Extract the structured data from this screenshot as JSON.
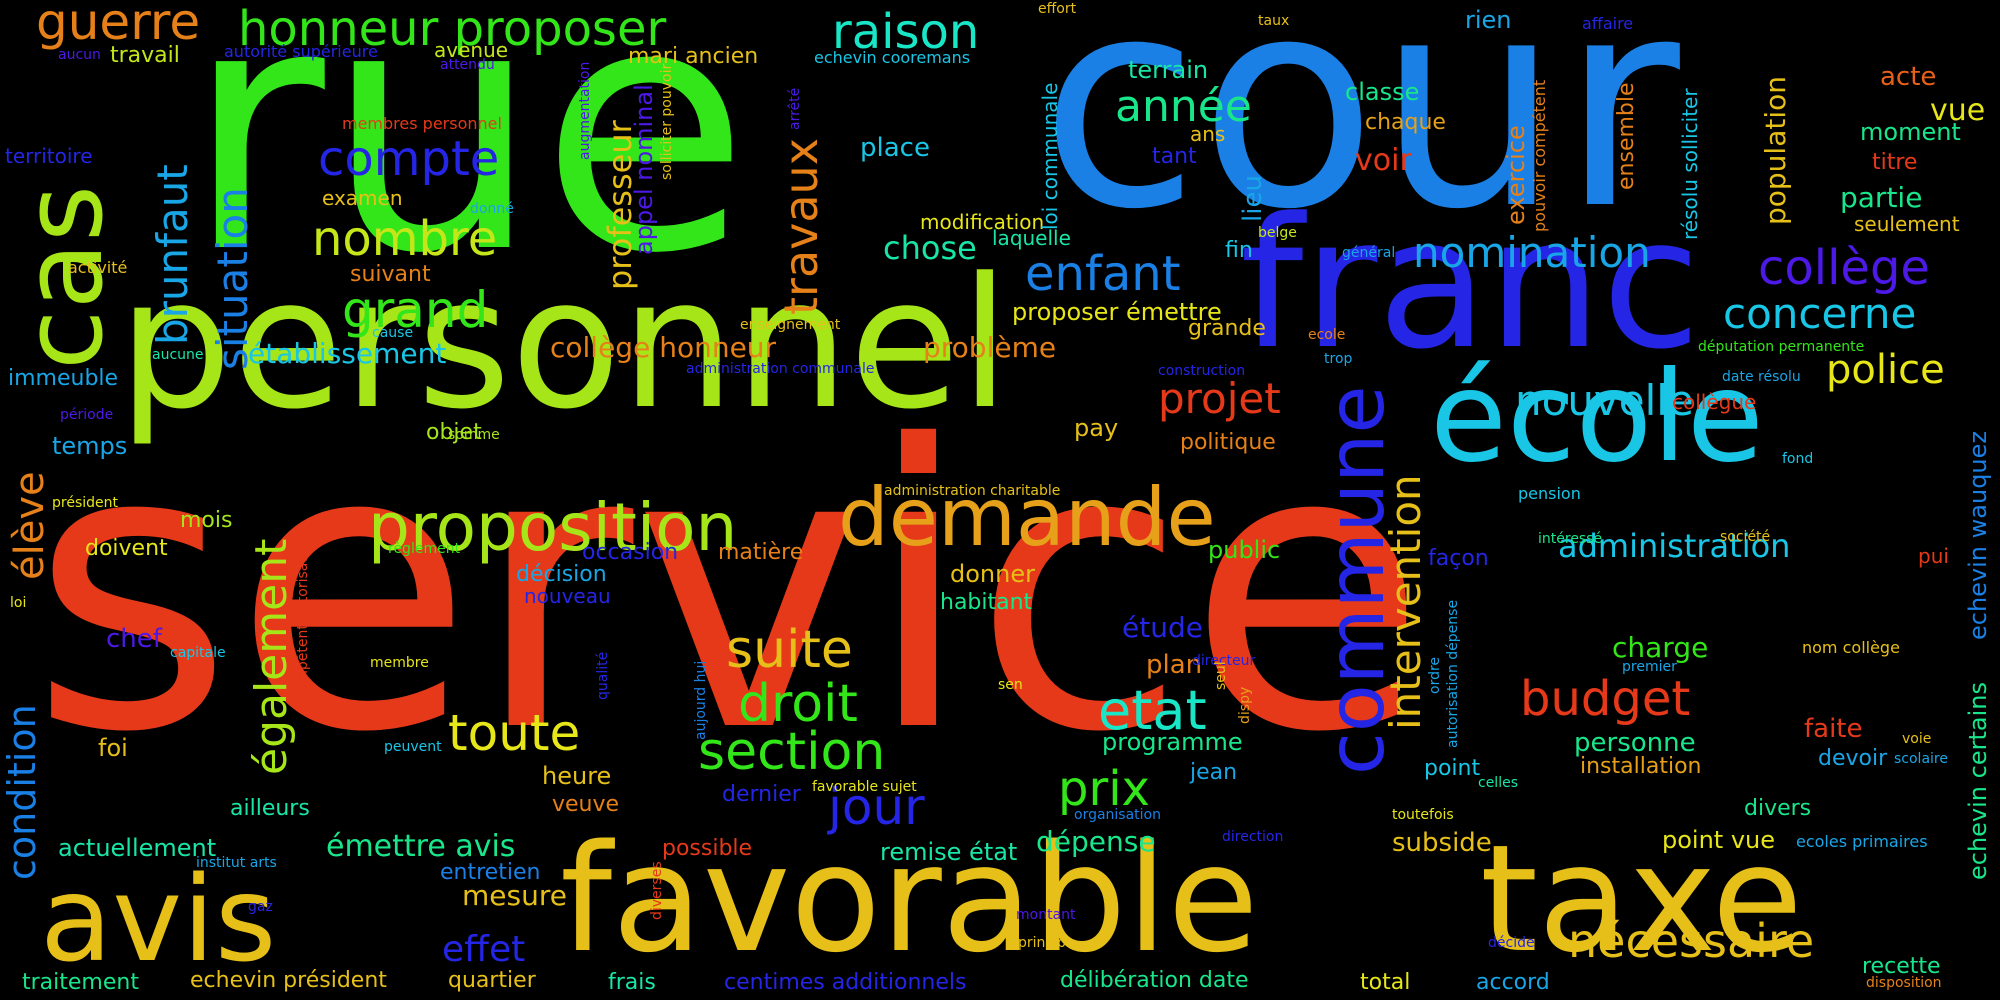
{
  "palette": {
    "green": "#33e619",
    "lime": "#a6e619",
    "yellow": "#e6c019",
    "orange": "#e68019",
    "red": "#e63919",
    "blue": "#1a80e6",
    "indigo": "#2525e6",
    "cyan": "#19c6e6",
    "teal": "#19e6a6",
    "mint": "#19e68a",
    "purple": "#4c19e6"
  },
  "words": [
    {
      "text": "service",
      "color": "#e63919"
    },
    {
      "text": "rue",
      "color": "#33e619"
    },
    {
      "text": "cour",
      "color": "#1a80e6"
    },
    {
      "text": "personnel",
      "color": "#a6e619"
    },
    {
      "text": "franc",
      "color": "#2525e6"
    },
    {
      "text": "école",
      "color": "#19c6e6"
    },
    {
      "text": "avis",
      "color": "#e6c019"
    },
    {
      "text": "favorable",
      "color": "#e6c019"
    },
    {
      "text": "taxe",
      "color": "#e6c019"
    },
    {
      "text": "cas",
      "color": "#a6e619"
    },
    {
      "text": "demande",
      "color": "#e6a019"
    },
    {
      "text": "proposition",
      "color": "#a6e619"
    },
    {
      "text": "commune",
      "color": "#2525e6"
    },
    {
      "text": "guerre",
      "color": "#e68019"
    },
    {
      "text": "honneur proposer",
      "color": "#33e619"
    },
    {
      "text": "raison",
      "color": "#19e6c6"
    },
    {
      "text": "compte",
      "color": "#2525e6"
    },
    {
      "text": "nombre",
      "color": "#c6e619"
    },
    {
      "text": "grand",
      "color": "#33e619"
    },
    {
      "text": "situation",
      "color": "#1a80e6"
    },
    {
      "text": "brunfaut",
      "color": "#19a6e6"
    },
    {
      "text": "travaux",
      "color": "#e68019"
    },
    {
      "text": "professeur",
      "color": "#e6c019"
    },
    {
      "text": "appel nominal",
      "color": "#4c19e6"
    },
    {
      "text": "année",
      "color": "#19e68a"
    },
    {
      "text": "enfant",
      "color": "#1a80e6"
    },
    {
      "text": "nomination",
      "color": "#19a6e6"
    },
    {
      "text": "concerne",
      "color": "#19c6e6"
    },
    {
      "text": "collège",
      "color": "#4c19e6"
    },
    {
      "text": "police",
      "color": "#e6e619"
    },
    {
      "text": "nouvelle",
      "color": "#19c6e6"
    },
    {
      "text": "projet",
      "color": "#e63919"
    },
    {
      "text": "intervention",
      "color": "#e6c019"
    },
    {
      "text": "administration",
      "color": "#19c6e6"
    },
    {
      "text": "budget",
      "color": "#e63919"
    },
    {
      "text": "également",
      "color": "#a6e619"
    },
    {
      "text": "élève",
      "color": "#e68019"
    },
    {
      "text": "condition",
      "color": "#1a80e6"
    },
    {
      "text": "suite",
      "color": "#e6c019"
    },
    {
      "text": "droit",
      "color": "#33e619"
    },
    {
      "text": "section",
      "color": "#33e619"
    },
    {
      "text": "toute",
      "color": "#e6e619"
    },
    {
      "text": "jour",
      "color": "#2525e6"
    },
    {
      "text": "etat",
      "color": "#19e6c6"
    },
    {
      "text": "prix",
      "color": "#33e619"
    },
    {
      "text": "nécessaire",
      "color": "#e6c019"
    },
    {
      "text": "établissement",
      "color": "#19c6e6"
    },
    {
      "text": "collège honneur",
      "color": "#e68019"
    },
    {
      "text": "problème",
      "color": "#e68019"
    },
    {
      "text": "chose",
      "color": "#19e6a6"
    },
    {
      "text": "place",
      "color": "#19c6e6"
    },
    {
      "text": "mari ancien",
      "color": "#e6c019"
    },
    {
      "text": "travail",
      "color": "#c6e619"
    },
    {
      "text": "avenue",
      "color": "#c6e619"
    },
    {
      "text": "terrain",
      "color": "#19e6a6"
    },
    {
      "text": "classe",
      "color": "#19e68a"
    },
    {
      "text": "chaque",
      "color": "#e6a019"
    },
    {
      "text": "voir",
      "color": "#e63919"
    },
    {
      "text": "rien",
      "color": "#19a6e6"
    },
    {
      "text": "acte",
      "color": "#e66019"
    },
    {
      "text": "vue",
      "color": "#e6e619"
    },
    {
      "text": "moment",
      "color": "#19e68a"
    },
    {
      "text": "titre",
      "color": "#e63919"
    },
    {
      "text": "partie",
      "color": "#19e68a"
    },
    {
      "text": "seulement",
      "color": "#e6c019"
    },
    {
      "text": "population",
      "color": "#e6c019"
    },
    {
      "text": "exercice",
      "color": "#e68019"
    },
    {
      "text": "ensemble",
      "color": "#e68019"
    },
    {
      "text": "lieu",
      "color": "#19a6e6"
    },
    {
      "text": "modification",
      "color": "#e6e619"
    },
    {
      "text": "laquelle",
      "color": "#19e6a6"
    },
    {
      "text": "fin",
      "color": "#19c6e6"
    },
    {
      "text": "proposer émettre",
      "color": "#e6e619"
    },
    {
      "text": "grande",
      "color": "#e6c019"
    },
    {
      "text": "pay",
      "color": "#e6c019"
    },
    {
      "text": "politique",
      "color": "#e68019"
    },
    {
      "text": "objet",
      "color": "#a6e619"
    },
    {
      "text": "temps",
      "color": "#19a6e6"
    },
    {
      "text": "immeuble",
      "color": "#19a6e6"
    },
    {
      "text": "territoire",
      "color": "#2525e6"
    },
    {
      "text": "examen",
      "color": "#e6c019"
    },
    {
      "text": "suivant",
      "color": "#e68019"
    },
    {
      "text": "mois",
      "color": "#a6e619"
    },
    {
      "text": "doivent",
      "color": "#e6e619"
    },
    {
      "text": "occasion",
      "color": "#2525e6"
    },
    {
      "text": "matière",
      "color": "#e68019"
    },
    {
      "text": "décision",
      "color": "#19a6e6"
    },
    {
      "text": "nouveau",
      "color": "#2525e6"
    },
    {
      "text": "donner",
      "color": "#e6c019"
    },
    {
      "text": "habitant",
      "color": "#19e68a"
    },
    {
      "text": "public",
      "color": "#33e619"
    },
    {
      "text": "façon",
      "color": "#2525e6"
    },
    {
      "text": "étude",
      "color": "#2525e6"
    },
    {
      "text": "plan",
      "color": "#e68019"
    },
    {
      "text": "chef",
      "color": "#4c19e6"
    },
    {
      "text": "foi",
      "color": "#e6c019"
    },
    {
      "text": "heure",
      "color": "#e6c019"
    },
    {
      "text": "veuve",
      "color": "#e68019"
    },
    {
      "text": "ailleurs",
      "color": "#19e6a6"
    },
    {
      "text": "actuellement",
      "color": "#19e6a6"
    },
    {
      "text": "émettre avis",
      "color": "#19e68a"
    },
    {
      "text": "programme",
      "color": "#19e68a"
    },
    {
      "text": "jean",
      "color": "#19a6e6"
    },
    {
      "text": "dernier",
      "color": "#2525e6"
    },
    {
      "text": "remise état",
      "color": "#19e6a6"
    },
    {
      "text": "dépense",
      "color": "#19e68a"
    },
    {
      "text": "possible",
      "color": "#e63919"
    },
    {
      "text": "entretien",
      "color": "#1a80e6"
    },
    {
      "text": "mesure",
      "color": "#e6c019"
    },
    {
      "text": "effet",
      "color": "#2525e6"
    },
    {
      "text": "traitement",
      "color": "#19e68a"
    },
    {
      "text": "echevin président",
      "color": "#e6c019"
    },
    {
      "text": "quartier",
      "color": "#e6c019"
    },
    {
      "text": "frais",
      "color": "#19e6a6"
    },
    {
      "text": "centimes additionnels",
      "color": "#2525e6"
    },
    {
      "text": "délibération date",
      "color": "#19e68a"
    },
    {
      "text": "total",
      "color": "#e6e619"
    },
    {
      "text": "accord",
      "color": "#19a6e6"
    },
    {
      "text": "recette",
      "color": "#19e68a"
    },
    {
      "text": "charge",
      "color": "#33e619"
    },
    {
      "text": "personne",
      "color": "#19e68a"
    },
    {
      "text": "installation",
      "color": "#e6a019"
    },
    {
      "text": "faite",
      "color": "#e63919"
    },
    {
      "text": "devoir",
      "color": "#19a6e6"
    },
    {
      "text": "point",
      "color": "#19c6e6"
    },
    {
      "text": "divers",
      "color": "#19e68a"
    },
    {
      "text": "point vue",
      "color": "#e6e619"
    },
    {
      "text": "subside",
      "color": "#e6c019"
    },
    {
      "text": "echevin wauquez",
      "color": "#1a80e6"
    },
    {
      "text": "echevin certains",
      "color": "#19e68a"
    },
    {
      "text": "pui",
      "color": "#e63919"
    },
    {
      "text": "résolu solliciter",
      "color": "#19c6e6"
    },
    {
      "text": "pouvoir compétent",
      "color": "#e68019"
    },
    {
      "text": "loi communale",
      "color": "#19c6e6"
    },
    {
      "text": "ans",
      "color": "#e6c019"
    },
    {
      "text": "tant",
      "color": "#2525e6"
    },
    {
      "text": "membres personnel",
      "color": "#e63919"
    },
    {
      "text": "autorité supérieure",
      "color": "#2525e6"
    },
    {
      "text": "attendu",
      "color": "#4c19e6"
    },
    {
      "text": "aucun",
      "color": "#4c19e6"
    },
    {
      "text": "echevin cooremans",
      "color": "#19c6e6"
    },
    {
      "text": "effort",
      "color": "#e6c019"
    },
    {
      "text": "taux",
      "color": "#e6c019"
    },
    {
      "text": "affaire",
      "color": "#2525e6"
    },
    {
      "text": "augmentation",
      "color": "#4c19e6"
    },
    {
      "text": "solliciter pouvoir",
      "color": "#e6c019"
    },
    {
      "text": "arrêté",
      "color": "#4c19e6"
    },
    {
      "text": "activité",
      "color": "#e6c019"
    },
    {
      "text": "donné",
      "color": "#19a6e6"
    },
    {
      "text": "aucune",
      "color": "#19e6a6"
    },
    {
      "text": "cause",
      "color": "#19c6e6"
    },
    {
      "text": "enseignement",
      "color": "#e6c019"
    },
    {
      "text": "administration communale",
      "color": "#2525e6"
    },
    {
      "text": "construction",
      "color": "#2525e6"
    },
    {
      "text": "général",
      "color": "#19a6e6"
    },
    {
      "text": "belge",
      "color": "#c6e619"
    },
    {
      "text": "ecole",
      "color": "#e68019"
    },
    {
      "text": "trop",
      "color": "#19a6e6"
    },
    {
      "text": "députation permanente",
      "color": "#33e619"
    },
    {
      "text": "date résolu",
      "color": "#19a6e6"
    },
    {
      "text": "fond",
      "color": "#19c6e6"
    },
    {
      "text": "collègue",
      "color": "#e63919"
    },
    {
      "text": "pension",
      "color": "#19c6e6"
    },
    {
      "text": "période",
      "color": "#4c19e6"
    },
    {
      "text": "somme",
      "color": "#a6e619"
    },
    {
      "text": "président",
      "color": "#e6e619"
    },
    {
      "text": "règlement",
      "color": "#33e619"
    },
    {
      "text": "administration charitable",
      "color": "#e6c019"
    },
    {
      "text": "compétent autorisation",
      "color": "#e63919"
    },
    {
      "text": "loi",
      "color": "#e6e619"
    },
    {
      "text": "capitale",
      "color": "#19c6e6"
    },
    {
      "text": "membre",
      "color": "#e6e619"
    },
    {
      "text": "peuvent",
      "color": "#19c6e6"
    },
    {
      "text": "qualité",
      "color": "#2525e6"
    },
    {
      "text": "aujourd hui",
      "color": "#1a80e6"
    },
    {
      "text": "favorable sujet",
      "color": "#e6e619"
    },
    {
      "text": "intéressé",
      "color": "#19e68a"
    },
    {
      "text": "autorisation dépense",
      "color": "#19a6e6"
    },
    {
      "text": "ordre",
      "color": "#19a6e6"
    },
    {
      "text": "société",
      "color": "#e6c019"
    },
    {
      "text": "nom collège",
      "color": "#e6c019"
    },
    {
      "text": "premier",
      "color": "#19a6e6"
    },
    {
      "text": "directeur",
      "color": "#2525e6"
    },
    {
      "text": "seul",
      "color": "#e6c019"
    },
    {
      "text": "dispy",
      "color": "#e6a019"
    },
    {
      "text": "sen",
      "color": "#e6e619"
    },
    {
      "text": "voie",
      "color": "#e6c019"
    },
    {
      "text": "scolaire",
      "color": "#19a6e6"
    },
    {
      "text": "celles",
      "color": "#19e6a6"
    },
    {
      "text": "organisation",
      "color": "#1a80e6"
    },
    {
      "text": "toutefois",
      "color": "#e6e619"
    },
    {
      "text": "direction",
      "color": "#2525e6"
    },
    {
      "text": "institut arts",
      "color": "#19a6e6"
    },
    {
      "text": "gaz",
      "color": "#2525e6"
    },
    {
      "text": "diverses",
      "color": "#e63919"
    },
    {
      "text": "montant",
      "color": "#4c19e6"
    },
    {
      "text": "principe",
      "color": "#e6c019"
    },
    {
      "text": "décide",
      "color": "#2525e6"
    },
    {
      "text": "ecoles primaires",
      "color": "#19a6e6"
    },
    {
      "text": "disposition",
      "color": "#e68019"
    }
  ]
}
